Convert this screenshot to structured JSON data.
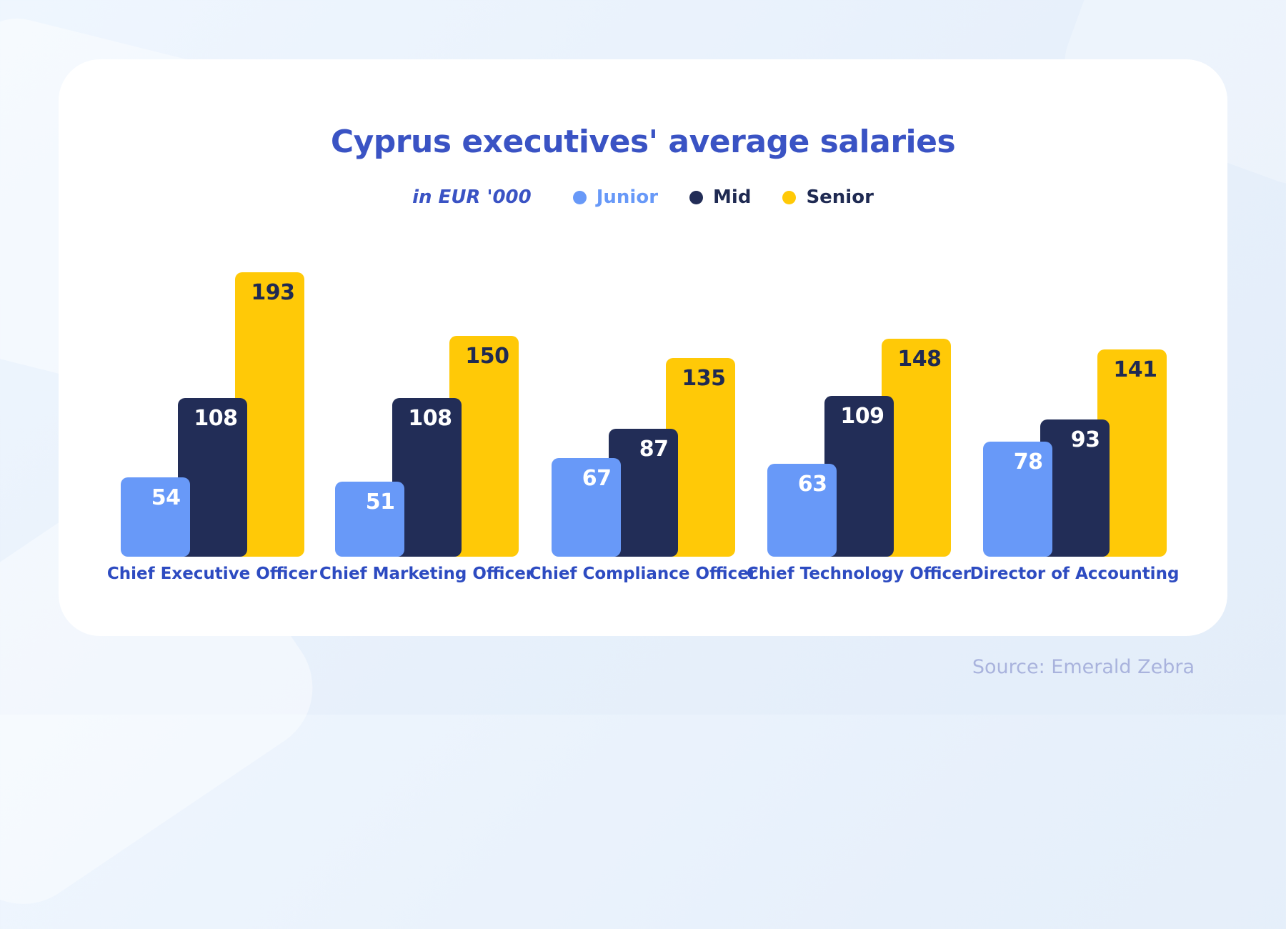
{
  "title": "Cyprus executives' average salaries",
  "unit_note": "in EUR '000",
  "source": "Source: Emerald Zebra",
  "colors": {
    "background": "#e7f0fb",
    "card": "#ffffff",
    "title_text": "#3a53c4",
    "category_text": "#2d4bc1",
    "source_text": "#a9b3dd",
    "junior": "#6899f8",
    "mid": "#222d57",
    "senior": "#ffc907",
    "label_on_light": "#1f2a52",
    "label_on_dark": "#ffffff"
  },
  "legend": {
    "items": [
      {
        "label": "Junior",
        "dot_color": "#6899f8",
        "text_color": "#6899f8"
      },
      {
        "label": "Mid",
        "dot_color": "#222d57",
        "text_color": "#1f2a52"
      },
      {
        "label": "Senior",
        "dot_color": "#ffc907",
        "text_color": "#1f2a52"
      }
    ]
  },
  "chart_data": {
    "type": "bar",
    "title": "Cyprus executives' average salaries",
    "unit": "EUR '000",
    "categories": [
      "Chief Executive Officer",
      "Chief Marketing Officer",
      "Chief Compliance Officer",
      "Chief Technology Officer",
      "Director of Accounting"
    ],
    "series": [
      {
        "name": "Junior",
        "color": "#6899f8",
        "value_label_color": "#ffffff",
        "values": [
          54,
          51,
          67,
          63,
          78
        ]
      },
      {
        "name": "Mid",
        "color": "#222d57",
        "value_label_color": "#ffffff",
        "values": [
          108,
          108,
          87,
          109,
          93
        ]
      },
      {
        "name": "Senior",
        "color": "#ffc907",
        "value_label_color": "#1f2a52",
        "values": [
          193,
          150,
          135,
          148,
          141
        ]
      }
    ],
    "value_labels": "inside-top-right",
    "grid": false,
    "axes_shown": false,
    "legend_position": "top-center",
    "ylim": [
      0,
      200
    ]
  }
}
